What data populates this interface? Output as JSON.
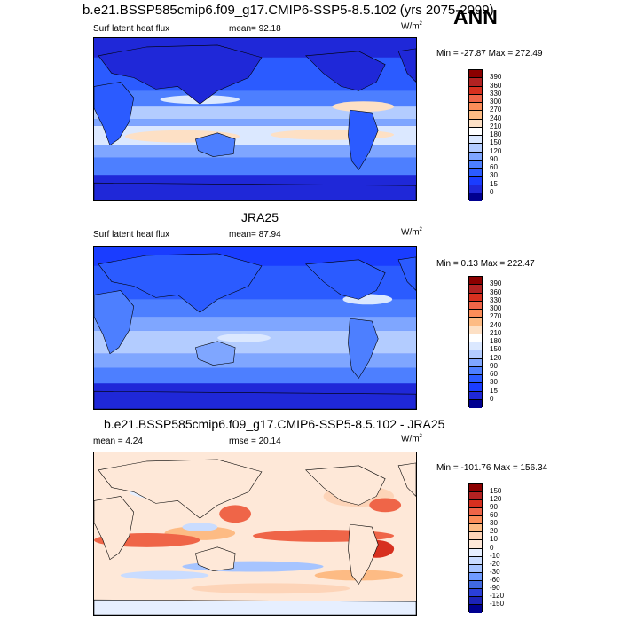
{
  "header": {
    "title": "b.e21.BSSP585cmip6.f09_g17.CMIP6-SSP5-8.5.102 (yrs 2075-2099)",
    "season": "ANN"
  },
  "panels": [
    {
      "title": "",
      "left_label": "Surf latent heat flux",
      "center_label": "mean=  92.18",
      "units": "W/m",
      "units_sup": "2",
      "minmax": "Min = -27.87 Max = 272.49",
      "colorbar": {
        "levels": [
          "390",
          "360",
          "330",
          "300",
          "270",
          "240",
          "210",
          "180",
          "150",
          "120",
          "90",
          "60",
          "30",
          "15",
          "0"
        ],
        "colors": [
          "#8b0000",
          "#b22222",
          "#d7301f",
          "#ef6548",
          "#fc8d59",
          "#fdbb84",
          "#fde0c5",
          "#ffffff",
          "#dbe8ff",
          "#b3ccff",
          "#7fa6ff",
          "#4d7fff",
          "#2b5bff",
          "#1a3dff",
          "#1f28d8",
          "#000090"
        ]
      }
    },
    {
      "title": "JRA25",
      "left_label": "Surf latent heat flux",
      "center_label": "mean=  87.94",
      "units": "W/m",
      "units_sup": "2",
      "minmax": "Min =   0.13 Max = 222.47",
      "colorbar": {
        "levels": [
          "390",
          "360",
          "330",
          "300",
          "270",
          "240",
          "210",
          "180",
          "150",
          "120",
          "90",
          "60",
          "30",
          "15",
          "0"
        ],
        "colors": [
          "#8b0000",
          "#b22222",
          "#d7301f",
          "#ef6548",
          "#fc8d59",
          "#fdbb84",
          "#fde0c5",
          "#ffffff",
          "#dbe8ff",
          "#b3ccff",
          "#7fa6ff",
          "#4d7fff",
          "#2b5bff",
          "#1a3dff",
          "#1f28d8",
          "#000090"
        ]
      }
    },
    {
      "title": "b.e21.BSSP585cmip6.f09_g17.CMIP6-SSP5-8.5.102 - JRA25",
      "left_label": "mean =   4.24",
      "center_label": "rmse =  20.14",
      "units": "W/m",
      "units_sup": "2",
      "minmax": "Min = -101.76 Max = 156.34",
      "colorbar": {
        "levels": [
          "150",
          "120",
          "90",
          "60",
          "30",
          "20",
          "10",
          "0",
          "-10",
          "-20",
          "-30",
          "-60",
          "-90",
          "-120",
          "-150"
        ],
        "colors": [
          "#8b0000",
          "#b22222",
          "#d7301f",
          "#ef6548",
          "#fc8d59",
          "#fdbb84",
          "#fdd4b8",
          "#fee8d8",
          "#e6efff",
          "#c9dcff",
          "#a6c4ff",
          "#6f9bff",
          "#4169e1",
          "#2a3fd8",
          "#1c23b8",
          "#000090"
        ]
      }
    }
  ]
}
